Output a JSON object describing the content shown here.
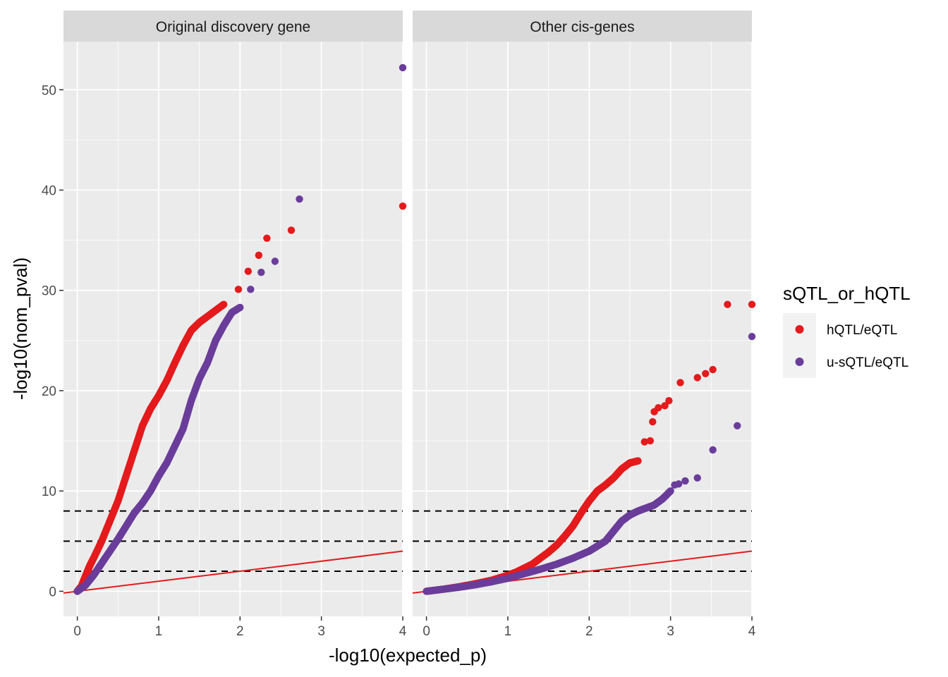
{
  "chart_data": {
    "type": "scatter",
    "xlabel": "-log10(expected_p)",
    "ylabel": "-log10(nom_pval)",
    "xlim": [
      -0.17,
      4.0
    ],
    "ylim": [
      -2.5,
      54.8
    ],
    "x_ticks": [
      0,
      1,
      2,
      3,
      4
    ],
    "y_ticks": [
      0,
      10,
      20,
      30,
      40,
      50
    ],
    "hlines": [
      2,
      5,
      8
    ],
    "hline_style": "dashed black",
    "reference_line": {
      "intercept": 0,
      "slope": 1,
      "color": "#e41a1c"
    },
    "grid": true,
    "legend": {
      "title": "sQTL_or_hQTL",
      "position": "right",
      "entries": [
        {
          "label": "hQTL/eQTL",
          "color": "#e41a1c"
        },
        {
          "label": "u-sQTL/eQTL",
          "color": "#6a3d9a"
        }
      ]
    },
    "panels": [
      {
        "title": "Original discovery gene",
        "series": [
          {
            "name": "hQTL/eQTL",
            "color": "#e41a1c",
            "curve": [
              [
                0,
                0
              ],
              [
                0.05,
                0.5
              ],
              [
                0.1,
                1.5
              ],
              [
                0.15,
                2.5
              ],
              [
                0.2,
                3.3
              ],
              [
                0.3,
                5.0
              ],
              [
                0.4,
                7.0
              ],
              [
                0.5,
                9.0
              ],
              [
                0.6,
                11.5
              ],
              [
                0.7,
                14.0
              ],
              [
                0.8,
                16.5
              ],
              [
                0.9,
                18.2
              ],
              [
                1.0,
                19.5
              ],
              [
                1.1,
                21.0
              ],
              [
                1.2,
                22.8
              ],
              [
                1.3,
                24.5
              ],
              [
                1.4,
                26.0
              ],
              [
                1.5,
                26.8
              ],
              [
                1.6,
                27.4
              ],
              [
                1.7,
                28.0
              ],
              [
                1.8,
                28.6
              ]
            ],
            "outliers": [
              [
                1.98,
                30.1
              ],
              [
                2.1,
                31.9
              ],
              [
                2.23,
                33.5
              ],
              [
                2.33,
                35.2
              ],
              [
                2.63,
                36.0
              ],
              [
                4.0,
                38.4
              ]
            ]
          },
          {
            "name": "u-sQTL/eQTL",
            "color": "#6a3d9a",
            "curve": [
              [
                0,
                0
              ],
              [
                0.1,
                0.6
              ],
              [
                0.2,
                1.6
              ],
              [
                0.3,
                2.8
              ],
              [
                0.4,
                4.0
              ],
              [
                0.5,
                5.2
              ],
              [
                0.6,
                6.5
              ],
              [
                0.7,
                7.8
              ],
              [
                0.8,
                8.8
              ],
              [
                0.9,
                10.0
              ],
              [
                1.0,
                11.5
              ],
              [
                1.1,
                12.8
              ],
              [
                1.2,
                14.5
              ],
              [
                1.3,
                16.2
              ],
              [
                1.4,
                19.0
              ],
              [
                1.5,
                21.2
              ],
              [
                1.6,
                22.8
              ],
              [
                1.7,
                25.0
              ],
              [
                1.8,
                26.5
              ],
              [
                1.9,
                27.8
              ],
              [
                2.0,
                28.3
              ]
            ],
            "outliers": [
              [
                2.13,
                30.1
              ],
              [
                2.26,
                31.8
              ],
              [
                2.43,
                32.9
              ],
              [
                2.73,
                39.1
              ],
              [
                4.0,
                52.2
              ]
            ]
          }
        ]
      },
      {
        "title": "Other cis-genes",
        "series": [
          {
            "name": "hQTL/eQTL",
            "color": "#e41a1c",
            "curve": [
              [
                0,
                0
              ],
              [
                0.2,
                0.2
              ],
              [
                0.4,
                0.45
              ],
              [
                0.6,
                0.75
              ],
              [
                0.8,
                1.1
              ],
              [
                1.0,
                1.6
              ],
              [
                1.1,
                1.9
              ],
              [
                1.2,
                2.3
              ],
              [
                1.3,
                2.7
              ],
              [
                1.4,
                3.3
              ],
              [
                1.5,
                3.9
              ],
              [
                1.6,
                4.6
              ],
              [
                1.7,
                5.5
              ],
              [
                1.8,
                6.5
              ],
              [
                1.9,
                7.8
              ],
              [
                2.0,
                9.0
              ],
              [
                2.1,
                10.0
              ],
              [
                2.2,
                10.6
              ],
              [
                2.3,
                11.3
              ],
              [
                2.4,
                12.2
              ],
              [
                2.5,
                12.8
              ],
              [
                2.6,
                13.0
              ]
            ],
            "outliers": [
              [
                2.68,
                14.9
              ],
              [
                2.75,
                15.0
              ],
              [
                2.78,
                16.9
              ],
              [
                2.8,
                17.9
              ],
              [
                2.85,
                18.3
              ],
              [
                2.93,
                18.5
              ],
              [
                2.98,
                19.0
              ],
              [
                3.12,
                20.8
              ],
              [
                3.33,
                21.3
              ],
              [
                3.43,
                21.7
              ],
              [
                3.52,
                22.1
              ],
              [
                3.7,
                28.6
              ],
              [
                4.0,
                28.6
              ]
            ]
          },
          {
            "name": "u-sQTL/eQTL",
            "color": "#6a3d9a",
            "curve": [
              [
                0,
                0
              ],
              [
                0.2,
                0.2
              ],
              [
                0.4,
                0.4
              ],
              [
                0.6,
                0.65
              ],
              [
                0.8,
                0.95
              ],
              [
                1.0,
                1.3
              ],
              [
                1.2,
                1.75
              ],
              [
                1.4,
                2.2
              ],
              [
                1.6,
                2.7
              ],
              [
                1.8,
                3.3
              ],
              [
                2.0,
                4.0
              ],
              [
                2.1,
                4.5
              ],
              [
                2.2,
                5.0
              ],
              [
                2.3,
                6.0
              ],
              [
                2.4,
                7.0
              ],
              [
                2.5,
                7.6
              ],
              [
                2.6,
                8.0
              ],
              [
                2.7,
                8.3
              ],
              [
                2.8,
                8.6
              ],
              [
                2.9,
                9.2
              ],
              [
                3.0,
                10.0
              ]
            ],
            "outliers": [
              [
                3.05,
                10.6
              ],
              [
                3.1,
                10.7
              ],
              [
                3.18,
                11.0
              ],
              [
                3.33,
                11.3
              ],
              [
                3.52,
                14.1
              ],
              [
                3.82,
                16.5
              ],
              [
                4.0,
                25.4
              ]
            ]
          }
        ]
      }
    ]
  }
}
